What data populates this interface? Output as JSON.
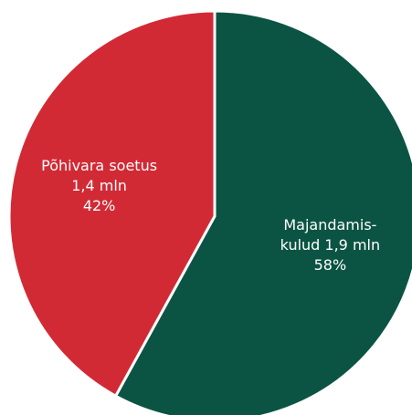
{
  "chart_data": {
    "type": "pie",
    "categories": [
      [
        "Majandamis-",
        "kulud 1,9 mln"
      ],
      [
        "Põhivara soetus",
        "1,4 mln"
      ]
    ],
    "values": [
      58,
      42
    ],
    "value_labels": [
      "58%",
      "42%"
    ],
    "colors": [
      "#0b5443",
      "#d22a35"
    ]
  }
}
